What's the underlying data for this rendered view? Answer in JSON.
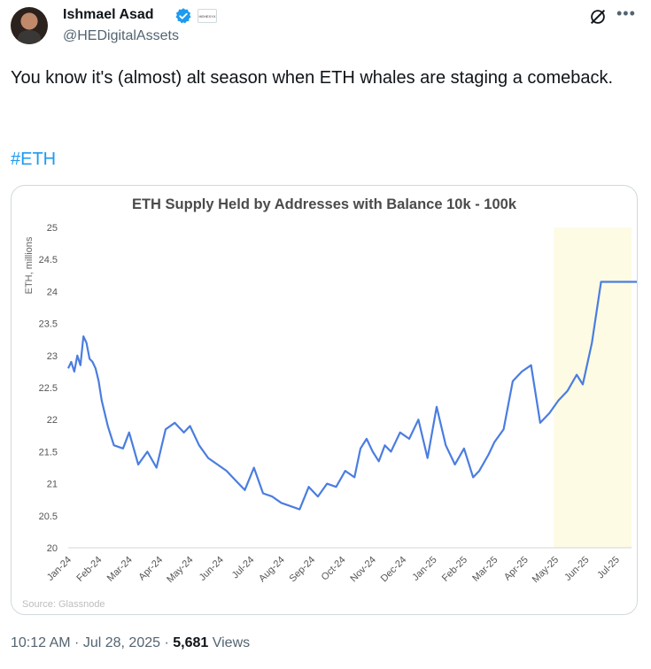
{
  "author": {
    "name": "Ishmael Asad",
    "handle": "@HEDigitalAssets",
    "affiliate_label": "HEHEXYX"
  },
  "tweet": {
    "text": "You know it's (almost) alt season when ETH whales are staging a comeback.",
    "hashtag": "#ETH"
  },
  "meta": {
    "time": "10:12 AM",
    "date": "Jul 28, 2025",
    "views_count": "5,681",
    "views_label": "Views"
  },
  "icons": {
    "verified": "verified-badge-icon",
    "grok": "grok-icon",
    "more": "more-icon"
  },
  "colors": {
    "line": "#4a7de0",
    "highlight": "#fdfbe4",
    "link": "#1d9bf0",
    "verified": "#1d9bf0"
  },
  "chart_data": {
    "type": "line",
    "title": "ETH Supply Held by Addresses with Balance 10k - 100k",
    "ylabel": "ETH, millions",
    "source": "Source: Glassnode",
    "ylim": [
      20,
      25
    ],
    "yticks": [
      "25",
      "24.5",
      "24",
      "23.5",
      "23",
      "22.5",
      "22",
      "21.5",
      "21",
      "20.5",
      "20"
    ],
    "xticks": [
      "Jan-24",
      "Feb-24",
      "Mar-24",
      "Apr-24",
      "May-24",
      "Jun-24",
      "Jul-24",
      "Aug-24",
      "Sep-24",
      "Oct-24",
      "Nov-24",
      "Dec-24",
      "Jan-25",
      "Feb-25",
      "Mar-25",
      "Apr-25",
      "May-25",
      "Jun-25",
      "Jul-25"
    ],
    "highlight_range": [
      "May-25",
      "end"
    ],
    "x": [
      0,
      0.1,
      0.2,
      0.3,
      0.4,
      0.5,
      0.6,
      0.7,
      0.8,
      0.9,
      1.0,
      1.1,
      1.3,
      1.5,
      1.8,
      2.0,
      2.3,
      2.6,
      2.9,
      3.2,
      3.5,
      3.8,
      4.0,
      4.3,
      4.6,
      4.9,
      5.2,
      5.5,
      5.8,
      6.1,
      6.4,
      6.7,
      7.0,
      7.3,
      7.6,
      7.9,
      8.2,
      8.5,
      8.8,
      9.1,
      9.4,
      9.6,
      9.8,
      10.0,
      10.2,
      10.4,
      10.6,
      10.9,
      11.2,
      11.5,
      11.8,
      12.1,
      12.4,
      12.7,
      13.0,
      13.3,
      13.5,
      13.8,
      14.0,
      14.3,
      14.6,
      14.9,
      15.2,
      15.5,
      15.8,
      16.1,
      16.4,
      16.7,
      16.9,
      17.2,
      17.5,
      17.8,
      18.0,
      18.3,
      18.5,
      18.6,
      18.7,
      18.75
    ],
    "values": [
      22.8,
      22.9,
      22.75,
      23.0,
      22.85,
      23.3,
      23.2,
      22.95,
      22.9,
      22.8,
      22.6,
      22.3,
      21.9,
      21.6,
      21.55,
      21.8,
      21.3,
      21.5,
      21.25,
      21.85,
      21.95,
      21.8,
      21.9,
      21.6,
      21.4,
      21.3,
      21.2,
      21.05,
      20.9,
      21.25,
      20.85,
      20.8,
      20.7,
      20.65,
      20.6,
      20.95,
      20.8,
      21.0,
      20.95,
      21.2,
      21.1,
      21.55,
      21.7,
      21.5,
      21.35,
      21.6,
      21.5,
      21.8,
      21.7,
      22.0,
      21.4,
      22.2,
      21.6,
      21.3,
      21.55,
      21.1,
      21.2,
      21.45,
      21.65,
      21.85,
      22.6,
      22.75,
      22.85,
      21.95,
      22.1,
      22.3,
      22.45,
      22.7,
      22.55,
      23.2,
      24.15,
      24.15,
      24.15,
      24.15,
      24.15,
      24.15,
      24.15,
      24.15
    ]
  }
}
